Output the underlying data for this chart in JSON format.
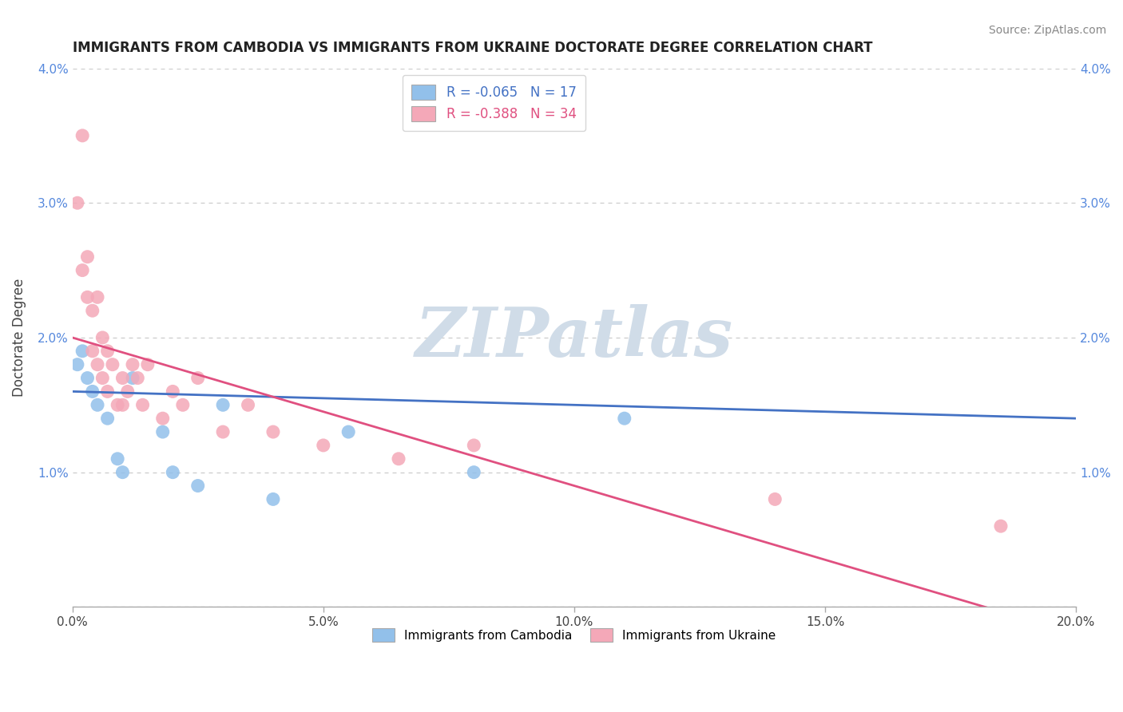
{
  "title": "IMMIGRANTS FROM CAMBODIA VS IMMIGRANTS FROM UKRAINE DOCTORATE DEGREE CORRELATION CHART",
  "source": "Source: ZipAtlas.com",
  "ylabel": "Doctorate Degree",
  "xlim": [
    0.0,
    0.2
  ],
  "ylim": [
    0.0,
    0.04
  ],
  "r_cambodia": -0.065,
  "n_cambodia": 17,
  "r_ukraine": -0.388,
  "n_ukraine": 34,
  "color_cambodia": "#92c0ea",
  "color_ukraine": "#f4a8b8",
  "line_color_cambodia": "#4472c4",
  "line_color_ukraine": "#e05080",
  "watermark_color": "#d0dce8",
  "background_color": "#ffffff",
  "title_fontsize": 12,
  "source_fontsize": 10,
  "tick_fontsize": 11,
  "legend_fontsize": 12,
  "cam_trend_start": 0.016,
  "cam_trend_end": 0.014,
  "ukr_trend_start": 0.02,
  "ukr_trend_end": -0.002,
  "cambodia_x": [
    0.001,
    0.002,
    0.003,
    0.004,
    0.005,
    0.007,
    0.009,
    0.01,
    0.012,
    0.018,
    0.02,
    0.025,
    0.03,
    0.04,
    0.055,
    0.08,
    0.11
  ],
  "cambodia_y": [
    0.018,
    0.019,
    0.017,
    0.016,
    0.015,
    0.014,
    0.011,
    0.01,
    0.017,
    0.013,
    0.01,
    0.009,
    0.015,
    0.008,
    0.013,
    0.01,
    0.014
  ],
  "ukraine_x": [
    0.001,
    0.002,
    0.002,
    0.003,
    0.003,
    0.004,
    0.004,
    0.005,
    0.005,
    0.006,
    0.006,
    0.007,
    0.007,
    0.008,
    0.009,
    0.01,
    0.01,
    0.011,
    0.012,
    0.013,
    0.014,
    0.015,
    0.018,
    0.02,
    0.022,
    0.025,
    0.03,
    0.035,
    0.04,
    0.05,
    0.065,
    0.08,
    0.14,
    0.185
  ],
  "ukraine_y": [
    0.03,
    0.025,
    0.035,
    0.023,
    0.026,
    0.022,
    0.019,
    0.023,
    0.018,
    0.02,
    0.017,
    0.019,
    0.016,
    0.018,
    0.015,
    0.017,
    0.015,
    0.016,
    0.018,
    0.017,
    0.015,
    0.018,
    0.014,
    0.016,
    0.015,
    0.017,
    0.013,
    0.015,
    0.013,
    0.012,
    0.011,
    0.012,
    0.008,
    0.006
  ]
}
